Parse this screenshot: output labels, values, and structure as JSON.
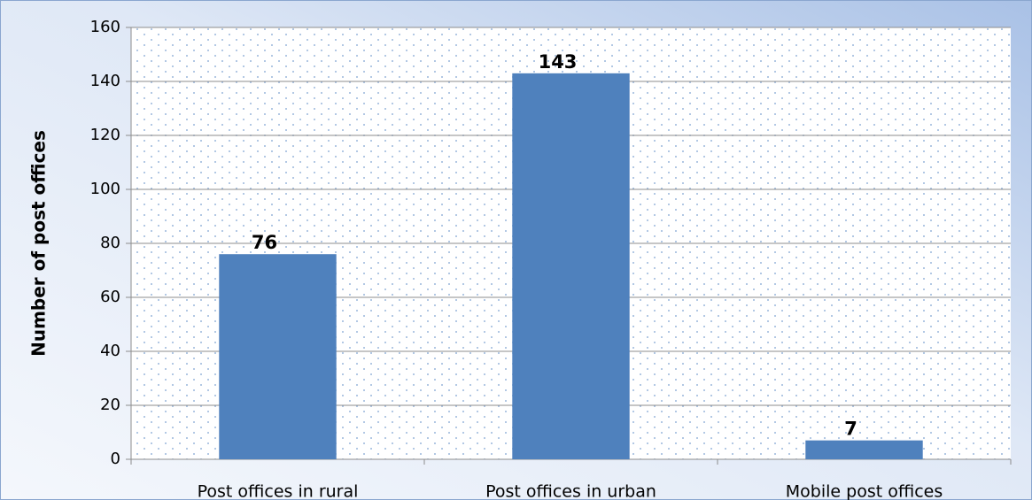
{
  "chart_data": {
    "type": "bar",
    "categories": [
      "Post offices in rural",
      "Post offices in urban",
      "Mobile post offices"
    ],
    "values": [
      76,
      143,
      7
    ],
    "color": "#4f81bd",
    "y_label": "Number of post offices",
    "ylim": [
      0,
      160
    ],
    "yticks": [
      0,
      20,
      40,
      60,
      80,
      100,
      120,
      140,
      160
    ],
    "grid": true
  }
}
